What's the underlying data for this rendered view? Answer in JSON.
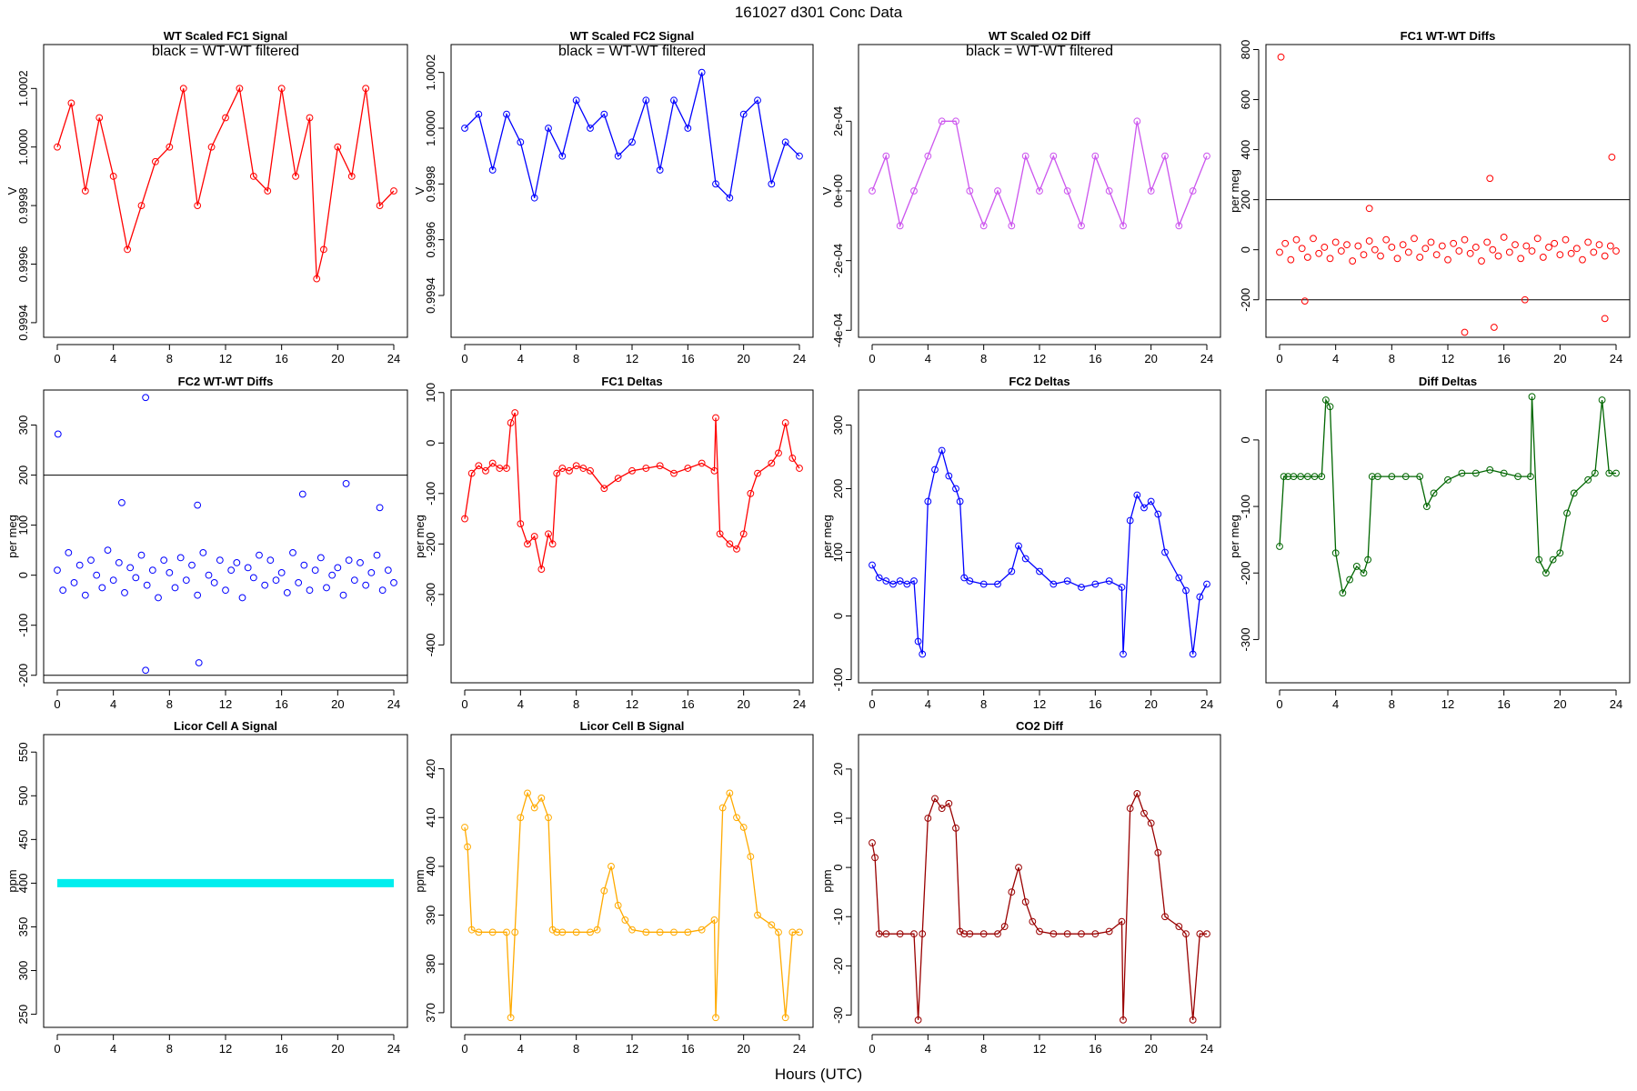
{
  "figure": {
    "title": "161027   d301   Conc Data",
    "xlabel": "Hours (UTC)",
    "filter_note": "black = WT-WT filtered"
  },
  "chart_data": [
    {
      "id": "p1",
      "type": "line",
      "title": "WT Scaled FC1 Signal",
      "ylabel": "V",
      "color": "#ff0000",
      "xlim": [
        0,
        24
      ],
      "ylim": [
        0.99935,
        1.00035
      ],
      "xticks": [
        0,
        4,
        8,
        12,
        16,
        20,
        24
      ],
      "yticks": [
        0.9994,
        0.9996,
        0.9998,
        1.0,
        1.0002
      ],
      "ytick_labels": [
        "0.9994",
        "0.9996",
        "0.9998",
        "1.0000",
        "1.0002"
      ],
      "note": "black = WT-WT filtered",
      "x": [
        0,
        1,
        2,
        3,
        4,
        5,
        6,
        7,
        8,
        9,
        10,
        11,
        12,
        13,
        14,
        15,
        16,
        17,
        18,
        18.5,
        19,
        20,
        21,
        22,
        23,
        24
      ],
      "y": [
        1.0,
        1.00015,
        0.99985,
        1.0001,
        0.9999,
        0.99965,
        0.9998,
        0.99995,
        1.0,
        1.0002,
        0.9998,
        1.0,
        1.0001,
        1.0002,
        0.9999,
        0.99985,
        1.0002,
        0.9999,
        1.0001,
        0.99955,
        0.99965,
        1.0,
        0.9999,
        1.0002,
        0.9998,
        0.99985
      ]
    },
    {
      "id": "p2",
      "type": "line",
      "title": "WT Scaled FC2 Signal",
      "ylabel": "V",
      "color": "#0000ff",
      "xlim": [
        0,
        24
      ],
      "ylim": [
        0.99925,
        1.0003
      ],
      "xticks": [
        0,
        4,
        8,
        12,
        16,
        20,
        24
      ],
      "yticks": [
        0.9994,
        0.9996,
        0.9998,
        1.0,
        1.0002
      ],
      "ytick_labels": [
        "0.9994",
        "0.9996",
        "0.9998",
        "1.0000",
        "1.0002"
      ],
      "note": "black = WT-WT filtered",
      "x": [
        0,
        1,
        2,
        3,
        4,
        5,
        6,
        7,
        8,
        9,
        10,
        11,
        12,
        13,
        14,
        15,
        16,
        17,
        18,
        19,
        20,
        21,
        22,
        23,
        24
      ],
      "y": [
        1.0,
        1.00005,
        0.99985,
        1.00005,
        0.99995,
        0.99975,
        1.0,
        0.9999,
        1.0001,
        1.0,
        1.00005,
        0.9999,
        0.99995,
        1.0001,
        0.99985,
        1.0001,
        1.0,
        1.0002,
        0.9998,
        0.99975,
        1.00005,
        1.0001,
        0.9998,
        0.99995,
        0.9999
      ]
    },
    {
      "id": "p3",
      "type": "line",
      "title": "WT Scaled O2 Diff",
      "ylabel": "V",
      "color": "#cc55ee",
      "xlim": [
        0,
        24
      ],
      "ylim": [
        -0.00042,
        0.00042
      ],
      "xticks": [
        0,
        4,
        8,
        12,
        16,
        20,
        24
      ],
      "yticks": [
        -0.0004,
        -0.0002,
        0.0,
        0.0002
      ],
      "ytick_labels": [
        "-4e-04",
        "-2e-04",
        "0e+00",
        "2e-04"
      ],
      "note": "black = WT-WT filtered",
      "x": [
        0,
        1,
        2,
        3,
        4,
        5,
        6,
        7,
        8,
        9,
        10,
        11,
        12,
        13,
        14,
        15,
        16,
        17,
        18,
        19,
        20,
        21,
        22,
        23,
        24
      ],
      "y": [
        0.0,
        0.0001,
        -0.0001,
        0.0,
        0.0001,
        0.0002,
        0.0002,
        0.0,
        -0.0001,
        0.0,
        -0.0001,
        0.0001,
        0.0,
        0.0001,
        0.0,
        -0.0001,
        0.0001,
        0.0,
        -0.0001,
        0.0002,
        0.0,
        0.0001,
        -0.0001,
        0.0,
        0.0001
      ]
    },
    {
      "id": "p4",
      "type": "scatter",
      "title": "FC1 WT-WT Diffs",
      "ylabel": "per meg",
      "color": "#ff0000",
      "xlim": [
        0,
        24
      ],
      "ylim": [
        -350,
        820
      ],
      "xticks": [
        0,
        4,
        8,
        12,
        16,
        20,
        24
      ],
      "yticks": [
        -200,
        0,
        200,
        400,
        600,
        800
      ],
      "ytick_labels": [
        "-200",
        "0",
        "200",
        "400",
        "600",
        "800"
      ],
      "hlines": [
        -200,
        200
      ],
      "x": [
        0,
        0.4,
        0.8,
        1.2,
        1.6,
        2.0,
        2.4,
        2.8,
        3.2,
        3.6,
        4.0,
        4.4,
        4.8,
        5.2,
        5.6,
        6.0,
        6.4,
        6.8,
        7.2,
        7.6,
        8.0,
        8.4,
        8.8,
        9.2,
        9.6,
        10.0,
        10.4,
        10.8,
        11.2,
        11.6,
        12.0,
        12.4,
        12.8,
        13.2,
        13.6,
        14.0,
        14.4,
        14.8,
        15.2,
        15.6,
        16.0,
        16.4,
        16.8,
        17.2,
        17.6,
        18.0,
        18.4,
        18.8,
        19.2,
        19.6,
        20.0,
        20.4,
        20.8,
        21.2,
        21.6,
        22.0,
        22.4,
        22.8,
        23.2,
        23.6,
        24.0,
        0.1,
        1.8,
        6.4,
        15.0,
        13.2,
        15.3,
        17.5,
        23.7,
        23.2
      ],
      "y": [
        -10,
        25,
        -40,
        40,
        5,
        -30,
        45,
        -15,
        10,
        -35,
        30,
        -5,
        20,
        -45,
        15,
        -20,
        35,
        0,
        -25,
        40,
        10,
        -35,
        20,
        -10,
        45,
        -30,
        5,
        30,
        -20,
        15,
        -40,
        25,
        -5,
        40,
        -15,
        10,
        -45,
        30,
        0,
        -25,
        50,
        -10,
        20,
        -35,
        15,
        -5,
        45,
        -30,
        10,
        25,
        -20,
        40,
        -15,
        5,
        -40,
        30,
        -10,
        20,
        -25,
        15,
        -5,
        770,
        -205,
        165,
        285,
        -330,
        -310,
        -200,
        370,
        -275
      ]
    },
    {
      "id": "p5",
      "type": "scatter",
      "title": "FC2 WT-WT Diffs",
      "ylabel": "per meg",
      "color": "#0000ff",
      "xlim": [
        0,
        24
      ],
      "ylim": [
        -215,
        370
      ],
      "xticks": [
        0,
        4,
        8,
        12,
        16,
        20,
        24
      ],
      "yticks": [
        -200,
        -100,
        0,
        100,
        200,
        300
      ],
      "ytick_labels": [
        "-200",
        "-100",
        "0",
        "100",
        "200",
        "300"
      ],
      "hlines": [
        -200,
        200
      ],
      "x": [
        0,
        0.4,
        0.8,
        1.2,
        1.6,
        2.0,
        2.4,
        2.8,
        3.2,
        3.6,
        4.0,
        4.4,
        4.8,
        5.2,
        5.6,
        6.0,
        6.4,
        6.8,
        7.2,
        7.6,
        8.0,
        8.4,
        8.8,
        9.2,
        9.6,
        10.0,
        10.4,
        10.8,
        11.2,
        11.6,
        12.0,
        12.4,
        12.8,
        13.2,
        13.6,
        14.0,
        14.4,
        14.8,
        15.2,
        15.6,
        16.0,
        16.4,
        16.8,
        17.2,
        17.6,
        18.0,
        18.4,
        18.8,
        19.2,
        19.6,
        20.0,
        20.4,
        20.8,
        21.2,
        21.6,
        22.0,
        22.4,
        22.8,
        23.2,
        23.6,
        24.0,
        0.05,
        6.3,
        6.3,
        4.6,
        10.0,
        17.5,
        20.6,
        23.0,
        10.1
      ],
      "y": [
        10,
        -30,
        45,
        -15,
        20,
        -40,
        30,
        0,
        -25,
        50,
        -10,
        25,
        -35,
        15,
        -5,
        40,
        -20,
        10,
        -45,
        30,
        5,
        -25,
        35,
        -10,
        20,
        -40,
        45,
        0,
        -15,
        30,
        -30,
        10,
        25,
        -45,
        15,
        -5,
        40,
        -20,
        30,
        -10,
        5,
        -35,
        45,
        -15,
        20,
        -30,
        10,
        35,
        -25,
        0,
        15,
        -40,
        30,
        -10,
        25,
        -20,
        5,
        40,
        -30,
        10,
        -15,
        282,
        355,
        -190,
        145,
        140,
        162,
        183,
        135,
        -175
      ]
    },
    {
      "id": "p6",
      "type": "line",
      "title": "FC1 Deltas",
      "ylabel": "per meg",
      "color": "#ff0000",
      "xlim": [
        0,
        24
      ],
      "ylim": [
        -475,
        105
      ],
      "xticks": [
        0,
        4,
        8,
        12,
        16,
        20,
        24
      ],
      "yticks": [
        -400,
        -300,
        -200,
        -100,
        0,
        100
      ],
      "ytick_labels": [
        "-400",
        "-300",
        "-200",
        "-100",
        "0",
        "100"
      ],
      "x": [
        0,
        0.5,
        1,
        1.5,
        2,
        2.5,
        3,
        3.3,
        3.6,
        4,
        4.5,
        5,
        5.5,
        6,
        6.3,
        6.6,
        7,
        7.5,
        8,
        8.5,
        9,
        10,
        11,
        12,
        13,
        14,
        15,
        16,
        17,
        17.9,
        18,
        18.3,
        19,
        19.5,
        20,
        20.5,
        21,
        22,
        22.5,
        23,
        23.5,
        24
      ],
      "y": [
        -150,
        -60,
        -45,
        -55,
        -40,
        -50,
        -50,
        40,
        60,
        -160,
        -200,
        -185,
        -250,
        -180,
        -200,
        -60,
        -50,
        -55,
        -45,
        -50,
        -55,
        -90,
        -70,
        -55,
        -50,
        -45,
        -60,
        -50,
        -40,
        -55,
        50,
        -180,
        -200,
        -210,
        -180,
        -100,
        -60,
        -40,
        -20,
        40,
        -30,
        -50
      ]
    },
    {
      "id": "p7",
      "type": "line",
      "title": "FC2 Deltas",
      "ylabel": "per meg",
      "color": "#0000ff",
      "xlim": [
        0,
        24
      ],
      "ylim": [
        -105,
        355
      ],
      "xticks": [
        0,
        4,
        8,
        12,
        16,
        20,
        24
      ],
      "yticks": [
        -100,
        0,
        100,
        200,
        300
      ],
      "ytick_labels": [
        "-100",
        "0",
        "100",
        "200",
        "300"
      ],
      "x": [
        0,
        0.5,
        1,
        1.5,
        2,
        2.5,
        3,
        3.3,
        3.6,
        4,
        4.5,
        5,
        5.5,
        6,
        6.3,
        6.6,
        7,
        8,
        9,
        10,
        10.5,
        11,
        12,
        13,
        14,
        15,
        16,
        17,
        17.9,
        18,
        18.5,
        19,
        19.5,
        20,
        20.5,
        21,
        22,
        22.5,
        23,
        23.5,
        24
      ],
      "y": [
        80,
        60,
        55,
        50,
        55,
        50,
        55,
        -40,
        -60,
        180,
        230,
        260,
        220,
        200,
        180,
        60,
        55,
        50,
        50,
        70,
        110,
        90,
        70,
        50,
        55,
        45,
        50,
        55,
        45,
        -60,
        150,
        190,
        170,
        180,
        160,
        100,
        60,
        40,
        -60,
        30,
        50
      ]
    },
    {
      "id": "p8",
      "type": "line",
      "title": "Diff Deltas",
      "ylabel": "per meg",
      "color": "#006600",
      "xlim": [
        0,
        24
      ],
      "ylim": [
        -365,
        75
      ],
      "xticks": [
        0,
        4,
        8,
        12,
        16,
        20,
        24
      ],
      "yticks": [
        -300,
        -200,
        -100,
        0
      ],
      "ytick_labels": [
        "-300",
        "-200",
        "-100",
        "0"
      ],
      "x": [
        0,
        0.3,
        0.6,
        1,
        1.5,
        2,
        2.5,
        3,
        3.3,
        3.6,
        4,
        4.5,
        5,
        5.5,
        6,
        6.3,
        6.6,
        7,
        8,
        9,
        10,
        10.5,
        11,
        12,
        13,
        14,
        15,
        16,
        17,
        17.9,
        18,
        18.5,
        19,
        19.5,
        20,
        20.5,
        21,
        22,
        22.5,
        23,
        23.5,
        24
      ],
      "y": [
        -160,
        -55,
        -55,
        -55,
        -55,
        -55,
        -55,
        -55,
        60,
        50,
        -170,
        -230,
        -210,
        -190,
        -200,
        -180,
        -55,
        -55,
        -55,
        -55,
        -55,
        -100,
        -80,
        -60,
        -50,
        -50,
        -45,
        -50,
        -55,
        -55,
        65,
        -180,
        -200,
        -180,
        -170,
        -110,
        -80,
        -60,
        -50,
        60,
        -50,
        -50
      ]
    },
    {
      "id": "p9",
      "type": "line",
      "title": "Licor Cell A Signal",
      "ylabel": "ppm",
      "color": "#00eeee",
      "xlim": [
        0,
        24
      ],
      "ylim": [
        235,
        570
      ],
      "xticks": [
        0,
        4,
        8,
        12,
        16,
        20,
        24
      ],
      "yticks": [
        250,
        300,
        350,
        400,
        450,
        500,
        550
      ],
      "ytick_labels": [
        "250",
        "300",
        "350",
        "400",
        "450",
        "500",
        "550"
      ],
      "x": [
        0,
        4,
        8,
        12,
        16,
        20,
        24
      ],
      "y": [
        400,
        400,
        400,
        400,
        400,
        400,
        400
      ]
    },
    {
      "id": "p10",
      "type": "line",
      "title": "Licor Cell B Signal",
      "ylabel": "ppm",
      "color": "#ffaa00",
      "xlim": [
        0,
        24
      ],
      "ylim": [
        367,
        427
      ],
      "xticks": [
        0,
        4,
        8,
        12,
        16,
        20,
        24
      ],
      "yticks": [
        370,
        380,
        390,
        400,
        410,
        420
      ],
      "ytick_labels": [
        "370",
        "380",
        "390",
        "400",
        "410",
        "420"
      ],
      "x": [
        0,
        0.2,
        0.5,
        1,
        2,
        3,
        3.3,
        3.6,
        4,
        4.5,
        5,
        5.5,
        6,
        6.3,
        6.6,
        7,
        8,
        9,
        9.5,
        10,
        10.5,
        11,
        11.5,
        12,
        13,
        14,
        15,
        16,
        17,
        17.9,
        18,
        18.5,
        19,
        19.5,
        20,
        20.5,
        21,
        22,
        22.5,
        23,
        23.5,
        24
      ],
      "y": [
        408,
        404,
        387,
        386.5,
        386.5,
        386.5,
        369,
        386.5,
        410,
        415,
        412,
        414,
        410,
        387,
        386.5,
        386.5,
        386.5,
        386.5,
        387,
        395,
        400,
        392,
        389,
        387,
        386.5,
        386.5,
        386.5,
        386.5,
        387,
        389,
        369,
        412,
        415,
        410,
        408,
        402,
        390,
        388,
        386.5,
        369,
        386.5,
        386.5
      ]
    },
    {
      "id": "p11",
      "type": "line",
      "title": "CO2 Diff",
      "ylabel": "ppm",
      "color": "#990000",
      "xlim": [
        0,
        24
      ],
      "ylim": [
        -32.5,
        27
      ],
      "xticks": [
        0,
        4,
        8,
        12,
        16,
        20,
        24
      ],
      "yticks": [
        -30,
        -20,
        -10,
        0,
        10,
        20
      ],
      "ytick_labels": [
        "-30",
        "-20",
        "-10",
        "0",
        "10",
        "20"
      ],
      "x": [
        0,
        0.2,
        0.5,
        1,
        2,
        3,
        3.3,
        3.6,
        4,
        4.5,
        5,
        5.5,
        6,
        6.3,
        6.6,
        7,
        8,
        9,
        9.5,
        10,
        10.5,
        11,
        11.5,
        12,
        13,
        14,
        15,
        16,
        17,
        17.9,
        18,
        18.5,
        19,
        19.5,
        20,
        20.5,
        21,
        22,
        22.5,
        23,
        23.5,
        24
      ],
      "y": [
        5,
        2,
        -13.5,
        -13.5,
        -13.5,
        -13.5,
        -31,
        -13.5,
        10,
        14,
        12,
        13,
        8,
        -13,
        -13.5,
        -13.5,
        -13.5,
        -13.5,
        -12,
        -5,
        0,
        -7,
        -11,
        -13,
        -13.5,
        -13.5,
        -13.5,
        -13.5,
        -13,
        -11,
        -31,
        12,
        15,
        11,
        9,
        3,
        -10,
        -12,
        -13.5,
        -31,
        -13.5,
        -13.5
      ]
    }
  ]
}
